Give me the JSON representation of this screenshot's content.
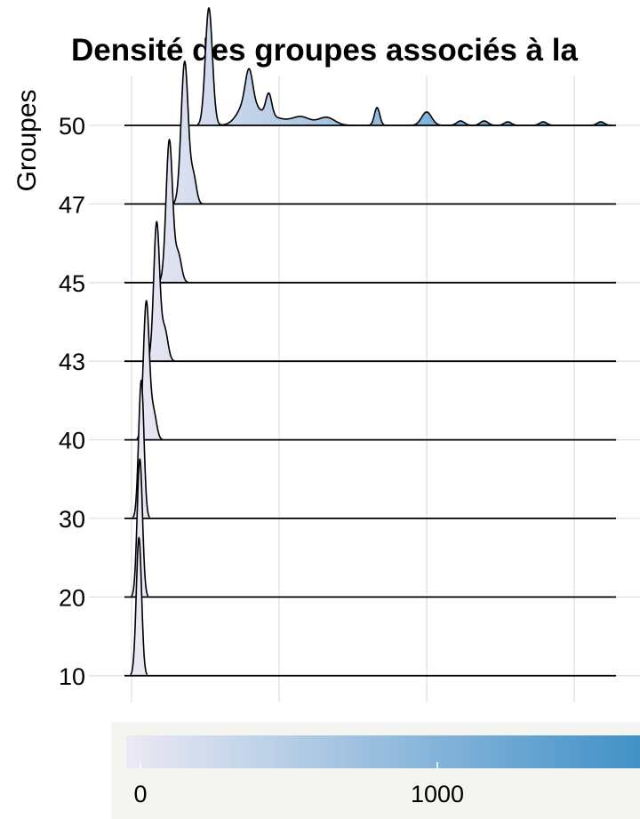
{
  "chart_data": {
    "type": "ridgeline",
    "title": "Densité des groupes associés à la",
    "xlabel": "",
    "ylabel": "Groupes",
    "xlim": [
      -50,
      1640
    ],
    "x_gridlines": [
      0,
      500,
      1000,
      1500
    ],
    "grid": true,
    "groups": [
      "10",
      "20",
      "30",
      "40",
      "43",
      "45",
      "47",
      "50"
    ],
    "series": [
      {
        "peaks": [
          {
            "x": 25,
            "sd": 9,
            "h": 155
          }
        ]
      },
      {
        "peaks": [
          {
            "x": 28,
            "sd": 9,
            "h": 155
          }
        ]
      },
      {
        "peaks": [
          {
            "x": 33,
            "sd": 9,
            "h": 155
          }
        ]
      },
      {
        "peaks": [
          {
            "x": 50,
            "sd": 10,
            "h": 155
          },
          {
            "x": 75,
            "sd": 10,
            "h": 30
          }
        ]
      },
      {
        "peaks": [
          {
            "x": 85,
            "sd": 10,
            "h": 155
          },
          {
            "x": 112,
            "sd": 11,
            "h": 36
          }
        ]
      },
      {
        "peaks": [
          {
            "x": 128,
            "sd": 11,
            "h": 160
          },
          {
            "x": 158,
            "sd": 11,
            "h": 32
          }
        ]
      },
      {
        "peaks": [
          {
            "x": 180,
            "sd": 12,
            "h": 160
          },
          {
            "x": 210,
            "sd": 10,
            "h": 30
          }
        ]
      },
      {
        "peaks": [
          {
            "x": 262,
            "sd": 12,
            "h": 132
          },
          {
            "x": 398,
            "sd": 12,
            "h": 35
          },
          {
            "x": 393,
            "sd": 30,
            "h": 25
          },
          {
            "x": 465,
            "sd": 10,
            "h": 25
          },
          {
            "x": 465,
            "sd": 50,
            "h": 10
          },
          {
            "x": 575,
            "sd": 30,
            "h": 9
          },
          {
            "x": 660,
            "sd": 28,
            "h": 9
          },
          {
            "x": 832,
            "sd": 9,
            "h": 20
          },
          {
            "x": 1000,
            "sd": 17,
            "h": 15
          },
          {
            "x": 1115,
            "sd": 13,
            "h": 5
          },
          {
            "x": 1195,
            "sd": 13,
            "h": 5
          },
          {
            "x": 1275,
            "sd": 12,
            "h": 4
          },
          {
            "x": 1395,
            "sd": 12,
            "h": 4
          },
          {
            "x": 1590,
            "sd": 12,
            "h": 4
          }
        ]
      }
    ],
    "legend": {
      "placement": "bottom",
      "ticks": [
        0,
        1000
      ],
      "tick_labels": [
        "0",
        "1000"
      ],
      "color_low": "#ece9f4",
      "color_high": "#3d8fc6"
    },
    "colors": {
      "grid": "#e0e0e0",
      "baseline": "#000000",
      "outline": "#000000",
      "legend_background": "#f4f4f0"
    }
  }
}
